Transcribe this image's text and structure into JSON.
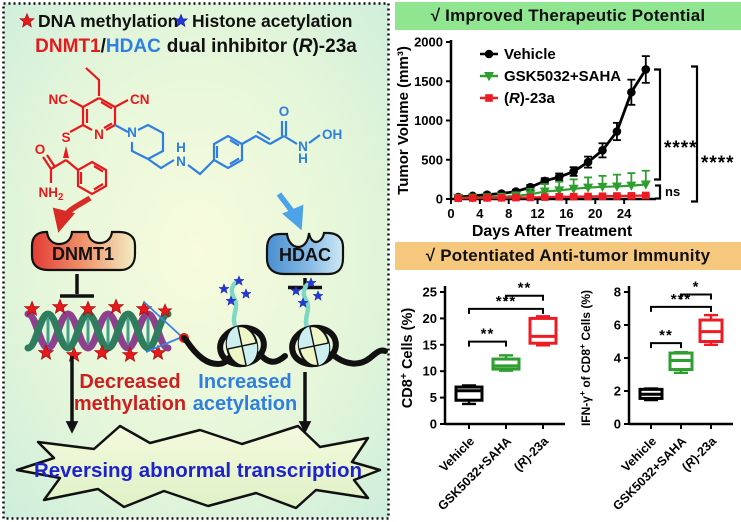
{
  "colors": {
    "accent_red": "#e8191c",
    "accent_blue": "#2f7fe0",
    "series_green": "#2e9e2e",
    "header_green": "#90e690",
    "header_orange": "#f6c87e",
    "panel_bg": "#d9f3e4",
    "transcription_text": "#1e22cc"
  },
  "left_panel": {
    "legend": {
      "dna_methylation": "DNA methylation",
      "histone_acetylation": "Histone acetylation"
    },
    "title": {
      "dnmt1": "DNMT1",
      "slash": "/",
      "hdac": "HDAC",
      "rest1": "dual inhibitor (",
      "r": "R",
      "rest2": ")-23a"
    },
    "molecule": {
      "nc": "NC",
      "cn": "CN",
      "s": "S",
      "ring_n": "N",
      "amide_o": "O",
      "amide_nh2": "NH₂",
      "pip_n": "N",
      "amine_h": "H",
      "amine_n": "N",
      "carbonyl_o": "O",
      "hydroxamate_n": "N",
      "hydroxamate_h": "H",
      "hydroxamate_oh": "OH"
    },
    "dnmt1_label": "DNMT1",
    "hdac_label": "HDAC",
    "decreased": "Decreased",
    "methylation": "methylation",
    "increased": "Increased",
    "acetylation": "acetylation",
    "transcription": "Reversing abnormal transcription"
  },
  "right_panels": {
    "therapeutic": {
      "header": "√ Improved Therapeutic Potential"
    },
    "immunity": {
      "header": "√ Potentiated Anti-tumor Immunity"
    }
  },
  "chart_data": [
    {
      "type": "line",
      "xlabel": "Days After Treatment",
      "ylabel": "Tumor Volume (mm³)",
      "xlim": [
        0,
        28
      ],
      "ylim": [
        0,
        2000
      ],
      "xticks": [
        0,
        4,
        8,
        12,
        16,
        20,
        24
      ],
      "yticks": [
        0,
        500,
        1000,
        1500,
        2000
      ],
      "x": [
        1,
        3,
        5,
        7,
        9,
        11,
        13,
        15,
        17,
        19,
        21,
        23,
        25,
        27
      ],
      "series": [
        {
          "name": "Vehicle",
          "color": "#000000",
          "marker": "circle",
          "error_dir": "both",
          "values": [
            25,
            40,
            55,
            70,
            95,
            150,
            230,
            280,
            350,
            470,
            620,
            860,
            1360,
            1650
          ],
          "errors": [
            10,
            12,
            15,
            18,
            22,
            30,
            35,
            45,
            55,
            70,
            90,
            110,
            160,
            170
          ]
        },
        {
          "name": "GSK5032+SAHA",
          "color": "#2e9e2e",
          "marker": "triangle-down",
          "error_dir": "up",
          "values": [
            15,
            18,
            22,
            28,
            40,
            60,
            95,
            110,
            130,
            145,
            155,
            160,
            170,
            185
          ],
          "errors": [
            8,
            10,
            12,
            16,
            45,
            70,
            95,
            110,
            120,
            130,
            140,
            150,
            160,
            175
          ]
        },
        {
          "name": "(R)-23a",
          "color": "#ed1c24",
          "marker": "square",
          "error_dir": "both",
          "values": [
            10,
            12,
            14,
            15,
            18,
            20,
            24,
            28,
            30,
            32,
            35,
            38,
            40,
            45
          ],
          "errors": [
            4,
            4,
            5,
            5,
            6,
            6,
            7,
            7,
            8,
            8,
            8,
            9,
            9,
            10
          ]
        }
      ],
      "annotations": [
        {
          "label": "****",
          "between": [
            "Vehicle",
            "GSK5032+SAHA"
          ]
        },
        {
          "label": "ns",
          "between": [
            "GSK5032+SAHA",
            "(R)-23a"
          ]
        },
        {
          "label": "****",
          "between": [
            "Vehicle",
            "(R)-23a"
          ]
        }
      ],
      "legend_position": "top-left"
    },
    {
      "type": "box",
      "ylabel": "CD8⁺ Cells (%)",
      "ylim": [
        0,
        25
      ],
      "yticks": [
        0,
        5,
        10,
        15,
        20,
        25
      ],
      "categories": [
        "Vehicle",
        "GSK5032+SAHA",
        "(R)-23a"
      ],
      "colors": [
        "#000000",
        "#2e9e2e",
        "#ed1c24"
      ],
      "boxes": [
        {
          "low": 3.8,
          "q1": 4.5,
          "median": 6.3,
          "q3": 7.0,
          "high": 7.3
        },
        {
          "low": 10.1,
          "q1": 10.4,
          "median": 11.0,
          "q3": 12.3,
          "high": 13.0
        },
        {
          "low": 14.9,
          "q1": 15.3,
          "median": 16.6,
          "q3": 20.0,
          "high": 20.4
        }
      ],
      "significance": [
        {
          "from": 0,
          "to": 1,
          "label": "**",
          "height": 15.6
        },
        {
          "from": 0,
          "to": 2,
          "label": "***",
          "height": 21.8
        },
        {
          "from": 1,
          "to": 2,
          "label": "**",
          "height": 24.3
        }
      ]
    },
    {
      "type": "box",
      "ylabel": "IFN-γ⁺ of CD8⁺ Cells (%)",
      "ylim": [
        0,
        8
      ],
      "yticks": [
        0,
        2,
        4,
        6,
        8
      ],
      "categories": [
        "Vehicle",
        "GSK5032+SAHA",
        "(R)-23a"
      ],
      "colors": [
        "#000000",
        "#2e9e2e",
        "#ed1c24"
      ],
      "boxes": [
        {
          "low": 1.45,
          "q1": 1.55,
          "median": 1.8,
          "q3": 2.1,
          "high": 2.15
        },
        {
          "low": 3.1,
          "q1": 3.3,
          "median": 3.85,
          "q3": 4.3,
          "high": 4.35
        },
        {
          "low": 4.8,
          "q1": 5.0,
          "median": 5.6,
          "q3": 6.3,
          "high": 6.6
        }
      ],
      "significance": [
        {
          "from": 0,
          "to": 1,
          "label": "**",
          "height": 4.9
        },
        {
          "from": 0,
          "to": 2,
          "label": "***",
          "height": 7.1
        },
        {
          "from": 1,
          "to": 2,
          "label": "*",
          "height": 7.85
        }
      ]
    }
  ]
}
